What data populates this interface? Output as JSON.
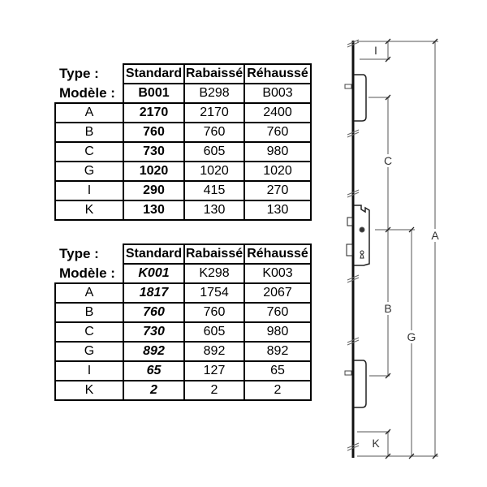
{
  "tables": [
    {
      "type_label": "Type :",
      "model_label": "Modèle :",
      "types": [
        "Standard",
        "Rabaissé",
        "Réhaussé"
      ],
      "models": [
        "B001",
        "B298",
        "B003"
      ],
      "rows": [
        {
          "dim": "A",
          "values": [
            "2170",
            "2170",
            "2400"
          ]
        },
        {
          "dim": "B",
          "values": [
            "760",
            "760",
            "760"
          ]
        },
        {
          "dim": "C",
          "values": [
            "730",
            "605",
            "980"
          ]
        },
        {
          "dim": "G",
          "values": [
            "1020",
            "1020",
            "1020"
          ]
        },
        {
          "dim": "I",
          "values": [
            "290",
            "415",
            "270"
          ]
        },
        {
          "dim": "K",
          "values": [
            "130",
            "130",
            "130"
          ]
        }
      ]
    },
    {
      "type_label": "Type :",
      "model_label": "Modèle :",
      "types": [
        "Standard",
        "Rabaissé",
        "Réhaussé"
      ],
      "models": [
        "K001",
        "K298",
        "K003"
      ],
      "rows": [
        {
          "dim": "A",
          "values": [
            "1817",
            "1754",
            "2067"
          ]
        },
        {
          "dim": "B",
          "values": [
            "760",
            "760",
            "760"
          ]
        },
        {
          "dim": "C",
          "values": [
            "730",
            "605",
            "980"
          ]
        },
        {
          "dim": "G",
          "values": [
            "892",
            "892",
            "892"
          ]
        },
        {
          "dim": "I",
          "values": [
            "65",
            "127",
            "65"
          ]
        },
        {
          "dim": "K",
          "values": [
            "2",
            "2",
            "2"
          ]
        }
      ]
    }
  ],
  "diagram": {
    "labels": {
      "I": "I",
      "C": "C",
      "B": "B",
      "G": "G",
      "A": "A",
      "K": "K"
    }
  }
}
